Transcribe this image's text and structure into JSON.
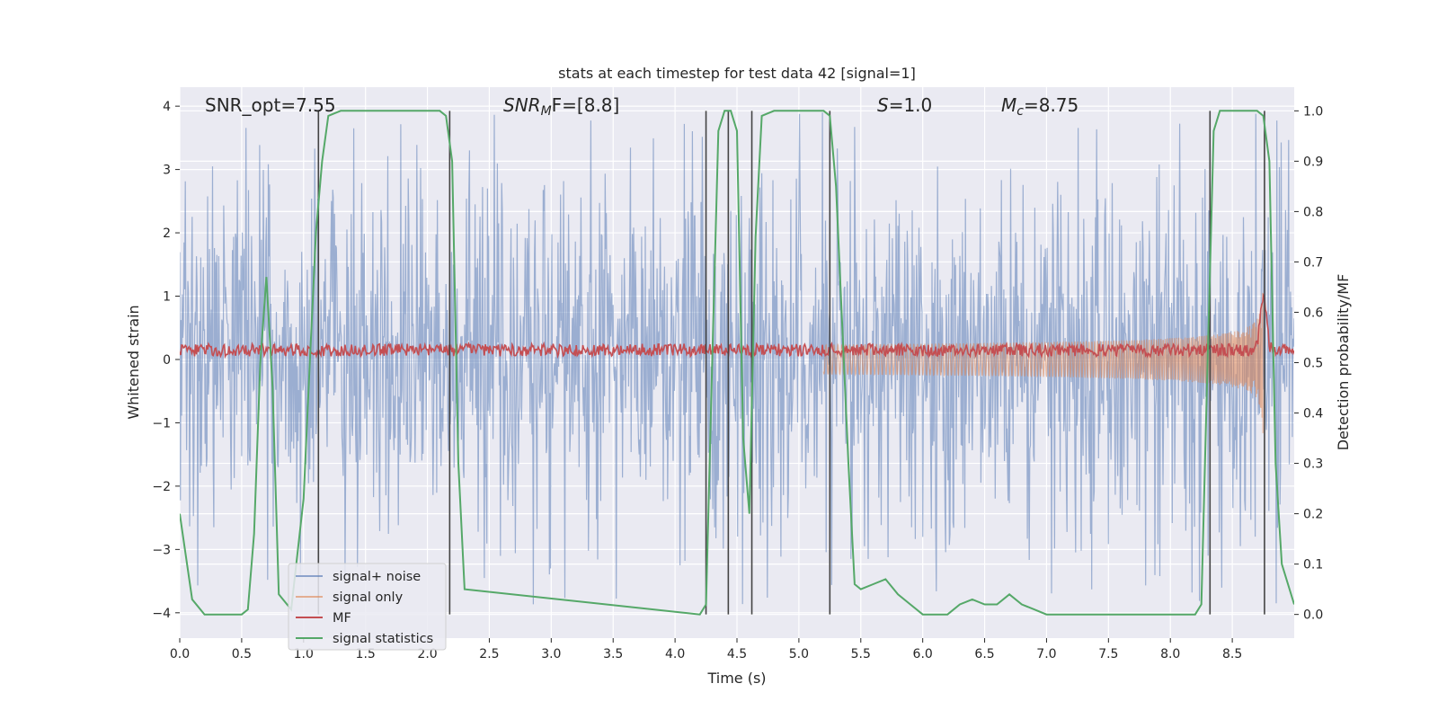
{
  "chart_data": {
    "type": "line",
    "title": "stats at each timestep for test data 42 [signal=1]",
    "xlabel": "Time (s)",
    "ylabel": "Whitened strain",
    "y2label": "Detection probability/MF",
    "xlim": [
      0.0,
      9.0
    ],
    "ylim": [
      -4.4,
      4.3
    ],
    "y2lim": [
      -0.047,
      1.047
    ],
    "xticks": [
      "0.0",
      "0.5",
      "1.0",
      "1.5",
      "2.0",
      "2.5",
      "3.0",
      "3.5",
      "4.0",
      "4.5",
      "5.0",
      "5.5",
      "6.0",
      "6.5",
      "7.0",
      "7.5",
      "8.0",
      "8.5"
    ],
    "yticks": [
      "4",
      "3",
      "2",
      "1",
      "0",
      "−1",
      "−2",
      "−3",
      "−4"
    ],
    "y2ticks": [
      "1.0",
      "0.9",
      "0.8",
      "0.7",
      "0.6",
      "0.5",
      "0.4",
      "0.3",
      "0.2",
      "0.1",
      "0.0"
    ],
    "grid": true,
    "legend_position": "bottom-left",
    "annotations": [
      {
        "plain": "SNR_opt=7.55",
        "x": 0.2
      },
      {
        "italic": "SNR",
        "sub": "M",
        "rest": "F=[8.8]",
        "x": 2.6
      },
      {
        "italic": "S",
        "sub": "",
        "rest": "=1.0",
        "x": 5.6
      },
      {
        "italic": "M",
        "sub": "c",
        "rest": "=8.75",
        "x": 6.6
      }
    ],
    "series": [
      {
        "name": "signal+ noise",
        "color": "#4c72b0",
        "noise_envelope": 1.6,
        "noise_peak": 3.9
      },
      {
        "name": "signal only",
        "color": "#dd8452",
        "chirp_start": 5.2,
        "chirp_merger": 8.75,
        "chirp_peak": 1.3
      },
      {
        "name": "MF",
        "color": "#c44e52",
        "baseline": 0.15,
        "spread": 0.1,
        "peak_x": 8.75,
        "peak_y": 1.0
      },
      {
        "name": "signal statistics",
        "color": "#55a868",
        "x": [
          0.0,
          0.1,
          0.2,
          0.3,
          0.4,
          0.5,
          0.55,
          0.6,
          0.65,
          0.7,
          0.75,
          0.8,
          0.9,
          1.0,
          1.05,
          1.1,
          1.15,
          1.2,
          1.3,
          1.5,
          2.0,
          2.1,
          2.15,
          2.2,
          2.25,
          2.3,
          4.2,
          4.25,
          4.3,
          4.35,
          4.4,
          4.45,
          4.5,
          4.55,
          4.6,
          4.65,
          4.7,
          4.8,
          5.2,
          5.25,
          5.3,
          5.4,
          5.45,
          5.5,
          5.6,
          5.7,
          5.8,
          5.9,
          6.0,
          6.2,
          6.3,
          6.4,
          6.5,
          6.6,
          6.7,
          6.8,
          6.9,
          7.0,
          8.2,
          8.25,
          8.3,
          8.35,
          8.4,
          8.6,
          8.7,
          8.75,
          8.8,
          8.85,
          8.9,
          9.0
        ],
        "y": [
          0.2,
          0.03,
          0.0,
          0.0,
          0.0,
          0.0,
          0.01,
          0.16,
          0.5,
          0.67,
          0.45,
          0.04,
          0.01,
          0.23,
          0.5,
          0.76,
          0.9,
          0.99,
          1.0,
          1.0,
          1.0,
          1.0,
          0.99,
          0.9,
          0.3,
          0.05,
          0.0,
          0.02,
          0.5,
          0.96,
          1.0,
          1.0,
          0.96,
          0.35,
          0.2,
          0.75,
          0.99,
          1.0,
          1.0,
          0.99,
          0.85,
          0.3,
          0.06,
          0.05,
          0.06,
          0.07,
          0.04,
          0.02,
          0.0,
          0.0,
          0.02,
          0.03,
          0.02,
          0.02,
          0.04,
          0.02,
          0.01,
          0.0,
          0.0,
          0.02,
          0.5,
          0.96,
          1.0,
          1.0,
          1.0,
          0.99,
          0.9,
          0.3,
          0.1,
          0.02
        ]
      }
    ],
    "vertical_lines": [
      1.12,
      2.18,
      4.25,
      4.43,
      4.62,
      5.25,
      8.32,
      8.76
    ]
  }
}
